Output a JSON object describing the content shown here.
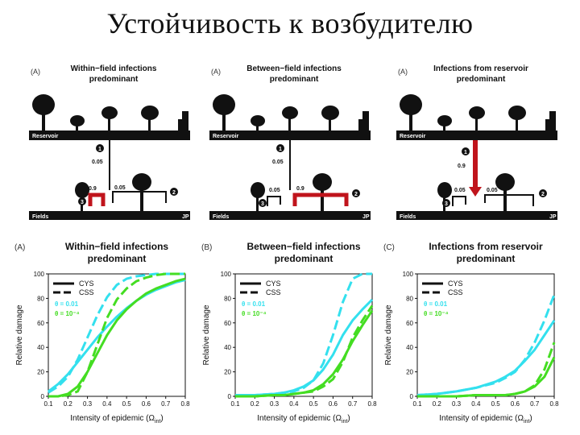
{
  "slide": {
    "title": "Устойчивость к возбудителю"
  },
  "colors": {
    "cyan": "#33e0ee",
    "green": "#44dd22",
    "red": "#c0141c",
    "dark": "#111111"
  },
  "diagram_panels": [
    {
      "letter": "(A)",
      "title_line1": "Within−field infections",
      "title_line2": "predominant",
      "reservoir_label": "Reservoir",
      "fields_label": "Fields",
      "jp_label": "JP",
      "route1_value": "0.05",
      "route2_value": "0.05",
      "route3_value": "0.9",
      "badge1": "1",
      "badge2": "2",
      "badge3": "3"
    },
    {
      "letter": "(A)",
      "title_line1": "Between−field infections",
      "title_line2": "predominant",
      "reservoir_label": "Reservoir",
      "fields_label": "Fields",
      "jp_label": "JP",
      "route1_value": "0.05",
      "route2_value": "0.9",
      "route3_value": "0.05",
      "badge1": "1",
      "badge2": "2",
      "badge3": "3"
    },
    {
      "letter": "(A)",
      "title_line1": "Infections from reservoir",
      "title_line2": "predominant",
      "reservoir_label": "Reservoir",
      "fields_label": "Fields",
      "jp_label": "JP",
      "route1_value": "0.9",
      "route2_value": "0.05",
      "route3_value": "0.05",
      "badge1": "1",
      "badge2": "2",
      "badge3": "3"
    }
  ],
  "chart_data": [
    {
      "type": "line",
      "letter": "(A)",
      "title_line1": "Within−field infections",
      "title_line2": "predominant",
      "xlabel": "Intensity of epidemic (Ω",
      "xlabel_sub": "int",
      "xlabel_end": ")",
      "ylabel": "Relative damage",
      "xlim": [
        0.1,
        0.8
      ],
      "ylim": [
        0,
        100
      ],
      "xticks": [
        "0.1",
        "0.2",
        "0.3",
        "0.4",
        "0.5",
        "0.6",
        "0.7",
        "0.8"
      ],
      "yticks": [
        "0",
        "20",
        "40",
        "60",
        "80",
        "100"
      ],
      "legend": {
        "solid": "CYS",
        "dashed": "CSS",
        "theta1": "θ = 0.01",
        "theta2": "θ = 10⁻⁴"
      },
      "series": [
        {
          "color": "cyan",
          "dash": false,
          "x": [
            0.1,
            0.15,
            0.2,
            0.25,
            0.3,
            0.35,
            0.4,
            0.45,
            0.5,
            0.55,
            0.6,
            0.65,
            0.7,
            0.75,
            0.8
          ],
          "y": [
            4,
            10,
            18,
            28,
            38,
            48,
            57,
            65,
            72,
            78,
            83,
            87,
            90,
            93,
            95
          ]
        },
        {
          "color": "cyan",
          "dash": true,
          "x": [
            0.1,
            0.15,
            0.2,
            0.25,
            0.3,
            0.35,
            0.4,
            0.45,
            0.5,
            0.55,
            0.6,
            0.65,
            0.7,
            0.75,
            0.8
          ],
          "y": [
            3,
            8,
            16,
            30,
            48,
            66,
            81,
            91,
            96,
            98,
            99,
            100,
            100,
            100,
            100
          ]
        },
        {
          "color": "green",
          "dash": false,
          "x": [
            0.1,
            0.15,
            0.2,
            0.25,
            0.3,
            0.35,
            0.4,
            0.45,
            0.5,
            0.55,
            0.6,
            0.65,
            0.7,
            0.75,
            0.8
          ],
          "y": [
            0,
            0,
            2,
            8,
            20,
            35,
            50,
            62,
            71,
            78,
            84,
            88,
            91,
            94,
            96
          ]
        },
        {
          "color": "green",
          "dash": true,
          "x": [
            0.1,
            0.15,
            0.2,
            0.25,
            0.3,
            0.35,
            0.4,
            0.45,
            0.5,
            0.55,
            0.6,
            0.65,
            0.7,
            0.75,
            0.8
          ],
          "y": [
            0,
            0,
            1,
            4,
            20,
            42,
            64,
            79,
            88,
            94,
            97,
            99,
            100,
            100,
            100
          ]
        }
      ]
    },
    {
      "type": "line",
      "letter": "(B)",
      "title_line1": "Between−field infections",
      "title_line2": "predominant",
      "xlabel": "Intensity of epidemic (Ω",
      "xlabel_sub": "int",
      "xlabel_end": ")",
      "ylabel": "Relative damage",
      "xlim": [
        0.1,
        0.8
      ],
      "ylim": [
        0,
        100
      ],
      "xticks": [
        "0.1",
        "0.2",
        "0.3",
        "0.4",
        "0.5",
        "0.6",
        "0.7",
        "0.8"
      ],
      "yticks": [
        "0",
        "20",
        "40",
        "60",
        "80",
        "100"
      ],
      "legend": {
        "solid": "CYS",
        "dashed": "CSS",
        "theta1": "θ = 0.01",
        "theta2": "θ = 10⁻⁴"
      },
      "series": [
        {
          "color": "cyan",
          "dash": false,
          "x": [
            0.1,
            0.2,
            0.3,
            0.35,
            0.4,
            0.45,
            0.5,
            0.55,
            0.6,
            0.65,
            0.7,
            0.75,
            0.8
          ],
          "y": [
            1,
            1,
            2,
            3,
            5,
            8,
            13,
            22,
            34,
            50,
            62,
            71,
            79
          ]
        },
        {
          "color": "cyan",
          "dash": true,
          "x": [
            0.1,
            0.2,
            0.3,
            0.35,
            0.4,
            0.45,
            0.5,
            0.55,
            0.6,
            0.65,
            0.7,
            0.75,
            0.8
          ],
          "y": [
            1,
            1,
            2,
            3,
            4,
            7,
            13,
            27,
            50,
            77,
            96,
            100,
            100
          ]
        },
        {
          "color": "green",
          "dash": false,
          "x": [
            0.1,
            0.2,
            0.3,
            0.35,
            0.4,
            0.45,
            0.5,
            0.55,
            0.6,
            0.65,
            0.7,
            0.75,
            0.8
          ],
          "y": [
            0,
            0,
            1,
            1,
            2,
            3,
            5,
            10,
            18,
            30,
            45,
            58,
            70
          ]
        },
        {
          "color": "green",
          "dash": true,
          "x": [
            0.1,
            0.2,
            0.3,
            0.35,
            0.4,
            0.45,
            0.5,
            0.55,
            0.6,
            0.65,
            0.7,
            0.75,
            0.8
          ],
          "y": [
            0,
            0,
            1,
            1,
            2,
            3,
            4,
            8,
            14,
            28,
            48,
            62,
            74
          ]
        }
      ]
    },
    {
      "type": "line",
      "letter": "(C)",
      "title_line1": "Infections from reservoir",
      "title_line2": "predominant",
      "xlabel": "Intensity of epidemic (Ω",
      "xlabel_sub": "int",
      "xlabel_end": ")",
      "ylabel": "Relative damage",
      "xlim": [
        0.1,
        0.8
      ],
      "ylim": [
        0,
        100
      ],
      "xticks": [
        "0.1",
        "0.2",
        "0.3",
        "0.4",
        "0.5",
        "0.6",
        "0.7",
        "0.8"
      ],
      "yticks": [
        "0",
        "20",
        "40",
        "60",
        "80",
        "100"
      ],
      "legend": {
        "solid": "CYS",
        "dashed": "CSS",
        "theta1": "θ = 0.01",
        "theta2": "θ = 10⁻⁴"
      },
      "series": [
        {
          "color": "cyan",
          "dash": false,
          "x": [
            0.1,
            0.2,
            0.3,
            0.4,
            0.5,
            0.55,
            0.6,
            0.65,
            0.7,
            0.75,
            0.8
          ],
          "y": [
            1,
            2,
            4,
            7,
            12,
            16,
            21,
            29,
            38,
            50,
            62
          ]
        },
        {
          "color": "cyan",
          "dash": true,
          "x": [
            0.1,
            0.2,
            0.3,
            0.4,
            0.5,
            0.55,
            0.6,
            0.65,
            0.7,
            0.75,
            0.8
          ],
          "y": [
            1,
            2,
            4,
            7,
            11,
            15,
            20,
            30,
            44,
            62,
            83
          ]
        },
        {
          "color": "green",
          "dash": false,
          "x": [
            0.1,
            0.2,
            0.3,
            0.4,
            0.5,
            0.55,
            0.6,
            0.65,
            0.7,
            0.75,
            0.8
          ],
          "y": [
            0,
            0,
            0,
            1,
            1,
            1,
            2,
            4,
            8,
            16,
            32
          ]
        },
        {
          "color": "green",
          "dash": true,
          "x": [
            0.1,
            0.2,
            0.3,
            0.4,
            0.5,
            0.55,
            0.6,
            0.65,
            0.7,
            0.75,
            0.8
          ],
          "y": [
            0,
            0,
            0,
            1,
            1,
            1,
            2,
            4,
            9,
            22,
            44
          ]
        }
      ]
    }
  ]
}
